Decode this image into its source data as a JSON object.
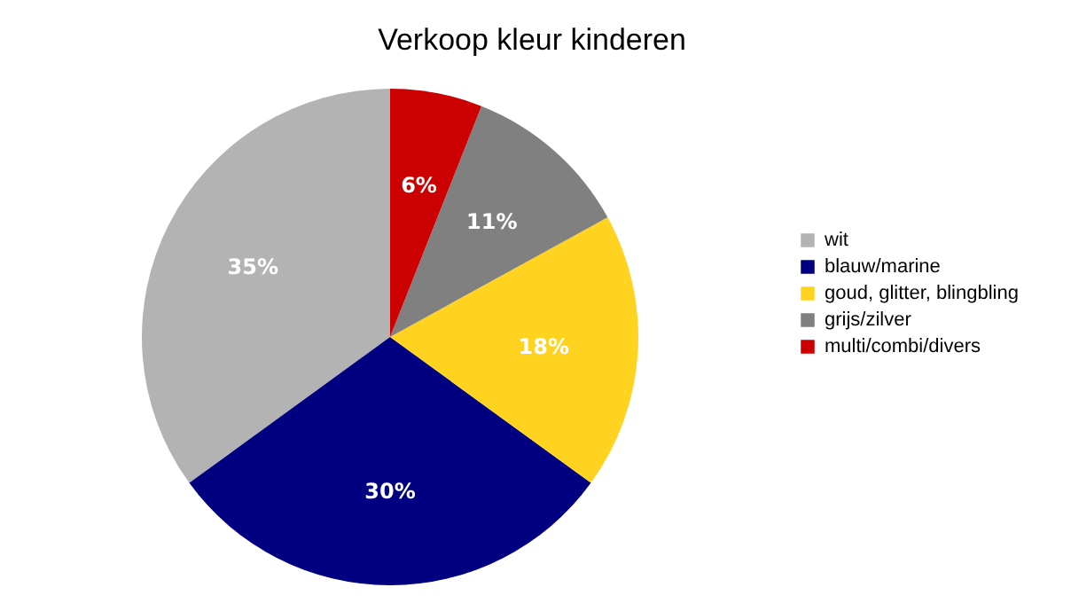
{
  "chart_data": {
    "type": "pie",
    "title": "Verkoop kleur kinderen",
    "categories": [
      "wit",
      "blauw/marine",
      "goud, glitter, blingbling",
      "grijs/zilver",
      "multi/combi/divers"
    ],
    "values": [
      35,
      30,
      18,
      11,
      6
    ],
    "colors": [
      "#b3b3b3",
      "#000080",
      "#ffd320",
      "#808080",
      "#cc0000"
    ],
    "value_labels": [
      "35%",
      "30%",
      "18%",
      "11%",
      "6%"
    ],
    "legend": "right"
  }
}
